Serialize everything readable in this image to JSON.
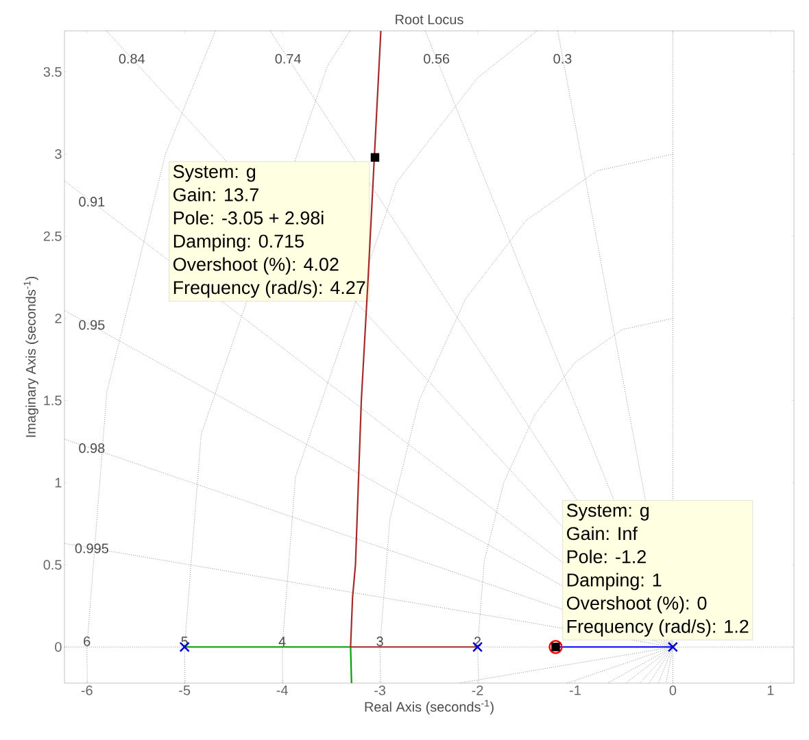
{
  "chart_data": {
    "type": "line",
    "title": "Root Locus",
    "xlabel": "Real Axis (seconds$^{-1}$)",
    "ylabel": "Imaginary Axis (seconds$^{-1}$)",
    "xlim": [
      -6.23,
      1.24
    ],
    "ylim": [
      -0.22,
      3.75
    ],
    "xticks": [
      -6,
      -5,
      -4,
      -3,
      -2,
      -1,
      0,
      1
    ],
    "yticks": [
      0,
      0.5,
      1,
      1.5,
      2,
      2.5,
      3,
      3.5
    ],
    "series": [
      {
        "color": "#8c8c8c",
        "line_style": "dotted",
        "x": [
          0,
          0
        ],
        "values": [
          -0.22,
          3.75
        ]
      },
      {
        "color": "#8c8c8c",
        "line_style": "dotted",
        "x": [
          -6.23,
          1.24
        ],
        "values": [
          0,
          0
        ]
      },
      {
        "color": "#8c8c8c",
        "line_style": "dotted",
        "x": [
          -5.8,
          0,
          -0.34
        ],
        "values": [
          3.75,
          0,
          -0.22
        ]
      },
      {
        "color": "#8c8c8c",
        "line_style": "dotted",
        "x": [
          -4.125,
          0,
          -0.242
        ],
        "values": [
          3.75,
          0,
          -0.22
        ]
      },
      {
        "color": "#8c8c8c",
        "line_style": "dotted",
        "x": [
          -2.535,
          0,
          -0.149
        ],
        "values": [
          3.75,
          0,
          -0.22
        ]
      },
      {
        "color": "#8c8c8c",
        "line_style": "dotted",
        "x": [
          -1.179,
          0,
          -0.069
        ],
        "values": [
          3.75,
          0,
          -0.22
        ]
      },
      {
        "color": "#8c8c8c",
        "line_style": "dotted",
        "x": [
          -6.23,
          0,
          -0.483
        ],
        "values": [
          2.838,
          0,
          -0.22
        ]
      },
      {
        "color": "#8c8c8c",
        "line_style": "dotted",
        "x": [
          -6.23,
          0,
          -0.669
        ],
        "values": [
          2.048,
          0,
          -0.22
        ]
      },
      {
        "color": "#8c8c8c",
        "line_style": "dotted",
        "x": [
          -6.23,
          0,
          -1.083
        ],
        "values": [
          1.265,
          0,
          -0.22
        ]
      },
      {
        "color": "#8c8c8c",
        "line_style": "dotted",
        "x": [
          -6.23,
          0,
          -2.191
        ],
        "values": [
          0.63,
          0,
          -0.22
        ]
      },
      {
        "color": "#8c8c8c",
        "line_style": "dotted",
        "x": [
          -4.684,
          -5.196,
          -5.796,
          -6,
          -5.996
        ],
        "values": [
          3.75,
          3,
          1.553,
          0,
          -0.22
        ]
      },
      {
        "color": "#8c8c8c",
        "line_style": "dotted",
        "x": [
          -3.307,
          -3.536,
          -4.83,
          -5,
          -4.995
        ],
        "values": [
          3.75,
          3.536,
          1.294,
          0,
          -0.22
        ]
      },
      {
        "color": "#8c8c8c",
        "line_style": "dotted",
        "x": [
          -1.392,
          -2,
          -2.828,
          -3.864,
          -4,
          -3.994
        ],
        "values": [
          3.75,
          3.464,
          2.828,
          1.035,
          0,
          -0.22
        ]
      },
      {
        "color": "#8c8c8c",
        "line_style": "dotted",
        "x": [
          0,
          -0.776,
          -1.5,
          -2.121,
          -2.598,
          -2.898,
          -3,
          -2.992
        ],
        "values": [
          3,
          2.898,
          2.598,
          2.121,
          1.5,
          0.776,
          0,
          -0.22
        ]
      },
      {
        "color": "#8c8c8c",
        "line_style": "dotted",
        "x": [
          0,
          -0.518,
          -1,
          -1.414,
          -1.732,
          -1.932,
          -2,
          -1.988
        ],
        "values": [
          2,
          1.932,
          1.732,
          1.414,
          1,
          0.518,
          0,
          -0.22
        ]
      },
      {
        "color": "#00a000",
        "x": [
          -5,
          -3.3,
          -3.29
        ],
        "values": [
          0,
          0,
          -0.22
        ]
      },
      {
        "color": "#a52a2a",
        "x": [
          -2,
          -3.3,
          -3.28,
          -3.25,
          -3.19,
          -3.12,
          -2.99
        ],
        "values": [
          0,
          0,
          0.3,
          0.5,
          1.5,
          2.25,
          3.75
        ]
      },
      {
        "color": "#0000ff",
        "x": [
          0,
          -1.2
        ],
        "values": [
          0,
          0
        ]
      },
      {
        "type": "scatter",
        "marker": "cross",
        "color": "#0000cc",
        "x": [
          -5,
          -2,
          0
        ],
        "values": [
          0,
          0,
          0
        ]
      },
      {
        "type": "scatter",
        "marker": "circle",
        "color": "#ff0000",
        "x": [
          -1.2
        ],
        "values": [
          0
        ]
      },
      {
        "type": "scatter",
        "marker": "square",
        "color": "#000000",
        "x": [
          -3.05,
          -1.2
        ],
        "values": [
          2.98,
          0
        ]
      }
    ],
    "annotations": [
      {
        "text": "0.84",
        "x": -5.54,
        "y": 3.58
      },
      {
        "text": "0.74",
        "x": -3.94,
        "y": 3.58
      },
      {
        "text": "0.56",
        "x": -2.42,
        "y": 3.58
      },
      {
        "text": "0.3",
        "x": -1.13,
        "y": 3.58
      },
      {
        "text": "0.91",
        "x": -5.95,
        "y": 2.71
      },
      {
        "text": "0.95",
        "x": -5.95,
        "y": 1.96
      },
      {
        "text": "0.98",
        "x": -5.95,
        "y": 1.21
      },
      {
        "text": "0.995",
        "x": -5.95,
        "y": 0.6
      },
      {
        "text": "6",
        "x": -6,
        "y": 0
      },
      {
        "text": "5",
        "x": -5,
        "y": 0
      },
      {
        "text": "4",
        "x": -4,
        "y": 0
      },
      {
        "text": "3",
        "x": -3,
        "y": 0
      },
      {
        "text": "2",
        "x": -2,
        "y": 0
      },
      "System: g",
      "Gain: 13.7",
      "Pole: -3.05 + 2.98i",
      "Damping: 0.715",
      "Overshoot (%): 4.02",
      "Frequency (rad/s): 4.27",
      "System: g",
      "Gain: Inf",
      "Pole: -1.2",
      "Damping: 1",
      "Overshoot (%): 0",
      "Frequency (rad/s): 1.2"
    ]
  }
}
